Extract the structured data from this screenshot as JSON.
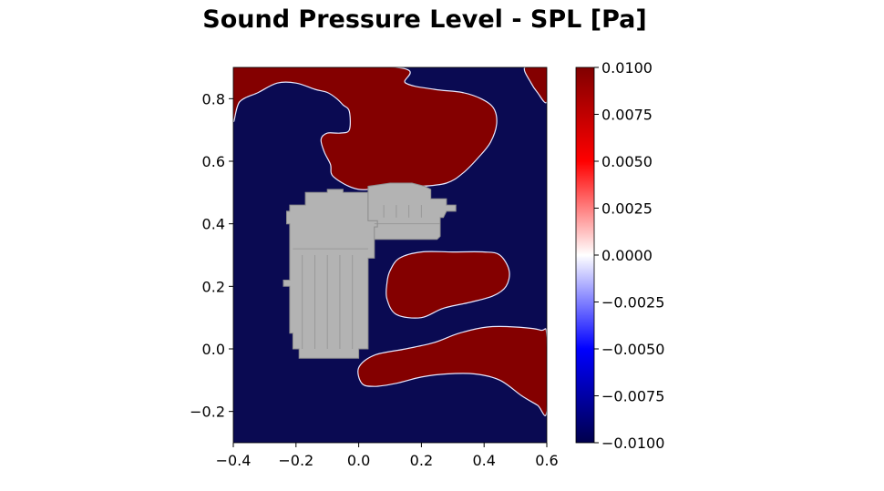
{
  "title": "Sound Pressure Level - SPL [Pa]",
  "colors": {
    "negative": "#0a0a52",
    "positive": "#840000",
    "geometry": "#b3b3b3",
    "geometry_dark": "#8f8f8f"
  },
  "chart_data": {
    "type": "heatmap",
    "title": "Sound Pressure Level - SPL [Pa]",
    "xlabel": "",
    "ylabel": "",
    "xlim": [
      -0.4,
      0.6
    ],
    "ylim": [
      -0.3,
      0.9
    ],
    "x_ticks": [
      -0.4,
      -0.2,
      0.0,
      0.2,
      0.4,
      0.6
    ],
    "x_tick_labels": [
      "−0.4",
      "−0.2",
      "0.0",
      "0.2",
      "0.4",
      "0.6"
    ],
    "y_ticks": [
      -0.2,
      0.0,
      0.2,
      0.4,
      0.6,
      0.8
    ],
    "y_tick_labels": [
      "−0.2",
      "0.0",
      "0.2",
      "0.4",
      "0.6",
      "0.8"
    ],
    "colorbar": {
      "colormap": "seismic",
      "vmin": -0.01,
      "vmax": 0.01,
      "ticks": [
        0.01,
        0.0075,
        0.005,
        0.0025,
        0.0,
        -0.0025,
        -0.005,
        -0.0075,
        -0.01
      ],
      "tick_labels": [
        "0.0100",
        "0.0075",
        "0.0050",
        "0.0025",
        "0.0000",
        "−0.0025",
        "−0.0050",
        "−0.0075",
        "−0.0100"
      ]
    },
    "background_value": -0.01,
    "positive_regions": [
      {
        "name": "upper-region",
        "value": 0.01,
        "outline": [
          [
            -0.4,
            0.73
          ],
          [
            -0.38,
            0.79
          ],
          [
            -0.32,
            0.82
          ],
          [
            -0.26,
            0.85
          ],
          [
            -0.2,
            0.85
          ],
          [
            -0.14,
            0.83
          ],
          [
            -0.1,
            0.82
          ],
          [
            -0.07,
            0.8
          ],
          [
            -0.05,
            0.78
          ],
          [
            -0.03,
            0.76
          ],
          [
            -0.03,
            0.7
          ],
          [
            -0.06,
            0.69
          ],
          [
            -0.1,
            0.69
          ],
          [
            -0.12,
            0.67
          ],
          [
            -0.11,
            0.63
          ],
          [
            -0.09,
            0.59
          ],
          [
            -0.08,
            0.55
          ],
          [
            0.0,
            0.51
          ],
          [
            0.1,
            0.52
          ],
          [
            0.2,
            0.52
          ],
          [
            0.28,
            0.53
          ],
          [
            0.33,
            0.56
          ],
          [
            0.38,
            0.61
          ],
          [
            0.42,
            0.66
          ],
          [
            0.44,
            0.72
          ],
          [
            0.43,
            0.77
          ],
          [
            0.39,
            0.8
          ],
          [
            0.33,
            0.82
          ],
          [
            0.24,
            0.83
          ],
          [
            0.15,
            0.85
          ],
          [
            0.12,
            0.9
          ],
          [
            -0.4,
            0.9
          ]
        ]
      },
      {
        "name": "mid-right-region",
        "value": 0.01,
        "outline": [
          [
            0.1,
            0.25
          ],
          [
            0.13,
            0.29
          ],
          [
            0.2,
            0.31
          ],
          [
            0.3,
            0.31
          ],
          [
            0.4,
            0.31
          ],
          [
            0.45,
            0.3
          ],
          [
            0.48,
            0.25
          ],
          [
            0.47,
            0.2
          ],
          [
            0.43,
            0.17
          ],
          [
            0.36,
            0.15
          ],
          [
            0.27,
            0.13
          ],
          [
            0.2,
            0.1
          ],
          [
            0.12,
            0.11
          ],
          [
            0.09,
            0.16
          ],
          [
            0.09,
            0.21
          ]
        ]
      },
      {
        "name": "lower-region",
        "value": 0.01,
        "outline": [
          [
            0.0,
            -0.06
          ],
          [
            0.05,
            -0.02
          ],
          [
            0.15,
            0.0
          ],
          [
            0.24,
            0.02
          ],
          [
            0.32,
            0.05
          ],
          [
            0.41,
            0.07
          ],
          [
            0.5,
            0.07
          ],
          [
            0.58,
            0.06
          ],
          [
            0.6,
            0.04
          ],
          [
            0.6,
            -0.2
          ],
          [
            0.57,
            -0.18
          ],
          [
            0.52,
            -0.15
          ],
          [
            0.45,
            -0.1
          ],
          [
            0.37,
            -0.08
          ],
          [
            0.28,
            -0.08
          ],
          [
            0.2,
            -0.09
          ],
          [
            0.12,
            -0.11
          ],
          [
            0.05,
            -0.12
          ],
          [
            0.01,
            -0.11
          ]
        ]
      },
      {
        "name": "top-right-region",
        "value": 0.01,
        "outline": [
          [
            0.53,
            0.9
          ],
          [
            0.55,
            0.85
          ],
          [
            0.57,
            0.82
          ],
          [
            0.6,
            0.79
          ],
          [
            0.6,
            0.9
          ]
        ]
      }
    ],
    "geometry": [
      {
        "name": "machine-left-block",
        "outline": [
          [
            -0.22,
            0.46
          ],
          [
            -0.17,
            0.46
          ],
          [
            -0.17,
            0.5
          ],
          [
            -0.1,
            0.5
          ],
          [
            -0.1,
            0.51
          ],
          [
            -0.05,
            0.51
          ],
          [
            -0.05,
            0.5
          ],
          [
            0.03,
            0.5
          ],
          [
            0.03,
            0.41
          ],
          [
            0.06,
            0.41
          ],
          [
            0.06,
            0.39
          ],
          [
            0.05,
            0.39
          ],
          [
            0.05,
            0.29
          ],
          [
            0.03,
            0.29
          ],
          [
            0.03,
            0.0
          ],
          [
            0.0,
            0.0
          ],
          [
            0.0,
            -0.03
          ],
          [
            -0.19,
            -0.03
          ],
          [
            -0.19,
            0.0
          ],
          [
            -0.21,
            0.0
          ],
          [
            -0.21,
            0.05
          ],
          [
            -0.22,
            0.05
          ],
          [
            -0.22,
            0.2
          ],
          [
            -0.24,
            0.2
          ],
          [
            -0.24,
            0.22
          ],
          [
            -0.22,
            0.22
          ],
          [
            -0.22,
            0.4
          ],
          [
            -0.23,
            0.4
          ],
          [
            -0.23,
            0.44
          ],
          [
            -0.22,
            0.44
          ]
        ]
      },
      {
        "name": "machine-right-block",
        "outline": [
          [
            0.03,
            0.52
          ],
          [
            0.1,
            0.53
          ],
          [
            0.17,
            0.53
          ],
          [
            0.21,
            0.52
          ],
          [
            0.23,
            0.51
          ],
          [
            0.23,
            0.48
          ],
          [
            0.28,
            0.48
          ],
          [
            0.28,
            0.46
          ],
          [
            0.31,
            0.46
          ],
          [
            0.31,
            0.44
          ],
          [
            0.28,
            0.44
          ],
          [
            0.27,
            0.42
          ],
          [
            0.26,
            0.42
          ],
          [
            0.26,
            0.36
          ],
          [
            0.25,
            0.35
          ],
          [
            0.05,
            0.35
          ],
          [
            0.05,
            0.39
          ],
          [
            0.06,
            0.39
          ],
          [
            0.06,
            0.41
          ],
          [
            0.03,
            0.41
          ]
        ]
      }
    ]
  }
}
